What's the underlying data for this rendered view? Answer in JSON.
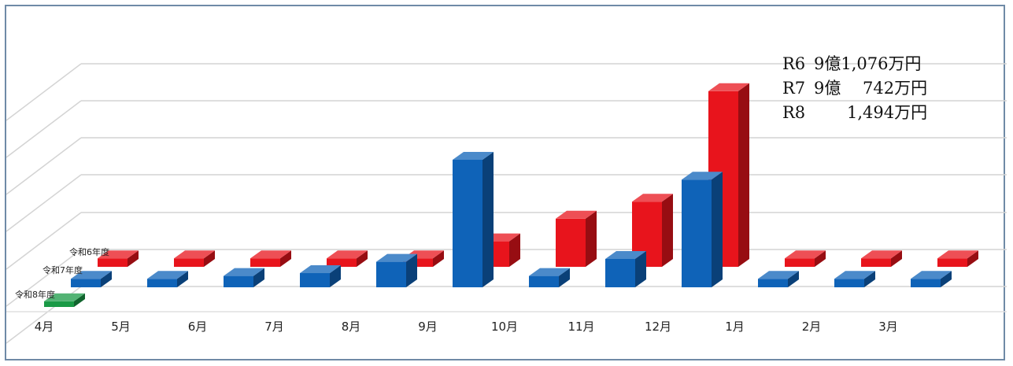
{
  "chart_data": {
    "type": "bar",
    "subtype": "3d-clustered",
    "categories": [
      "4月",
      "5月",
      "6月",
      "7月",
      "8月",
      "9月",
      "10月",
      "11月",
      "12月",
      "1月",
      "2月",
      "3月"
    ],
    "series": [
      {
        "name": "令和6年度",
        "color": "#e8141c",
        "values": [
          0.3,
          0.3,
          0.3,
          0.3,
          0.3,
          0.9,
          1.7,
          2.3,
          6.2,
          0.3,
          0.3,
          0.3
        ]
      },
      {
        "name": "令和7年度",
        "color": "#0f63b8",
        "values": [
          0.3,
          0.3,
          0.4,
          0.5,
          0.9,
          4.5,
          0.4,
          1.0,
          3.8,
          0.3,
          0.3,
          0.3
        ]
      },
      {
        "name": "令和8年度",
        "color": "#1a9a46",
        "values": [
          0.2,
          null,
          null,
          null,
          null,
          null,
          null,
          null,
          null,
          null,
          null,
          null
        ]
      }
    ],
    "grid": true,
    "legend": "depth-axis"
  },
  "totals": [
    {
      "era": "R6",
      "amount": "9億1,076万円"
    },
    {
      "era": "R7",
      "amount": "9億　 742万円"
    },
    {
      "era": "R8",
      "amount": "　　1,494万円"
    }
  ]
}
